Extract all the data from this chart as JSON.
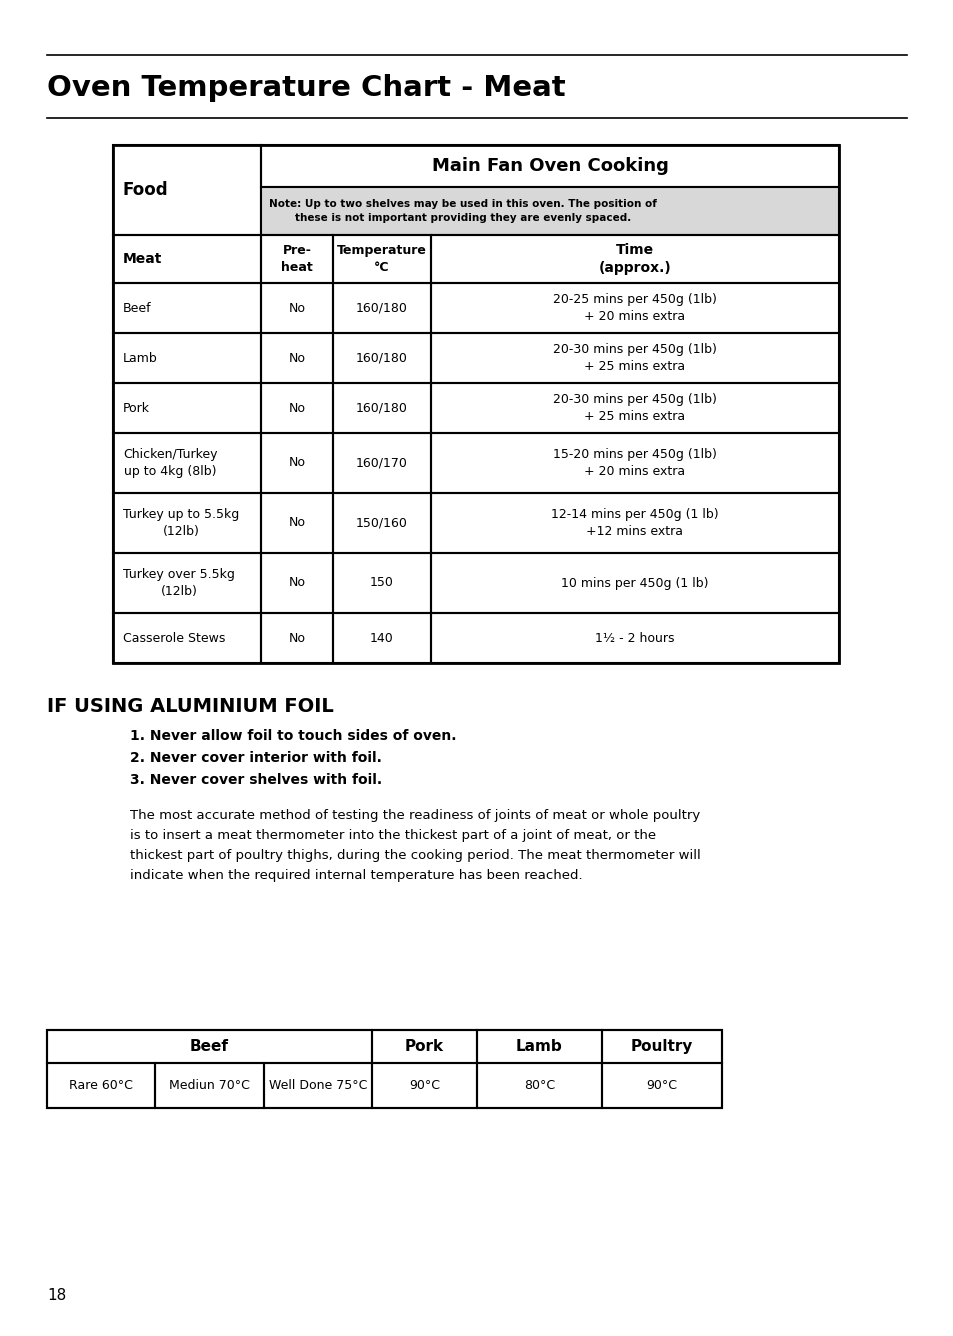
{
  "title": "Oven Temperature Chart - Meat",
  "page_number": "18",
  "table1_header_col1": "Food",
  "table1_header_col2": "Main Fan Oven Cooking",
  "table1_note": "Note: Up to two shelves may be used in this oven. The position of\nthese is not important providing they are evenly spaced.",
  "table1_subheaders": [
    "Meat",
    "Pre-\nheat",
    "Temperature\n°C",
    "Time\n(approx.)"
  ],
  "table1_rows": [
    [
      "Beef",
      "No",
      "160/180",
      "20-25 mins per 450g (1lb)\n+ 20 mins extra"
    ],
    [
      "Lamb",
      "No",
      "160/180",
      "20-30 mins per 450g (1lb)\n+ 25 mins extra"
    ],
    [
      "Pork",
      "No",
      "160/180",
      "20-30 mins per 450g (1lb)\n+ 25 mins extra"
    ],
    [
      "Chicken/Turkey\nup to 4kg (8lb)",
      "No",
      "160/170",
      "15-20 mins per 450g (1lb)\n+ 20 mins extra"
    ],
    [
      "Turkey up to 5.5kg\n(12lb)",
      "No",
      "150/160",
      "12-14 mins per 450g (1 lb)\n+12 mins extra"
    ],
    [
      "Turkey over 5.5kg\n(12lb)",
      "No",
      "150",
      "10 mins per 450g (1 lb)"
    ],
    [
      "Casserole Stews",
      "No",
      "140",
      "1½ - 2 hours"
    ]
  ],
  "foil_heading": "IF USING ALUMINIUM FOIL",
  "foil_items": [
    "1. Never allow foil to touch sides of oven.",
    "2. Never cover interior with foil.",
    "3. Never cover shelves with foil."
  ],
  "foil_paragraph_lines": [
    "The most accurate method of testing the readiness of joints of meat or whole poultry",
    "is to insert a meat thermometer into the thickest part of a joint of meat, or the",
    "thickest part of poultry thighs, during the cooking period. The meat thermometer will",
    "indicate when the required internal temperature has been reached."
  ],
  "table2_beef_label": "Beef",
  "table2_beef_cols": [
    "Rare 60°C",
    "Mediun 70°C",
    "Well Done 75°C"
  ],
  "table2_pork_label": "Pork",
  "table2_lamb_label": "Lamb",
  "table2_poultry_label": "Poultry",
  "table2_other": [
    "90°C",
    "80°C",
    "90°C"
  ]
}
